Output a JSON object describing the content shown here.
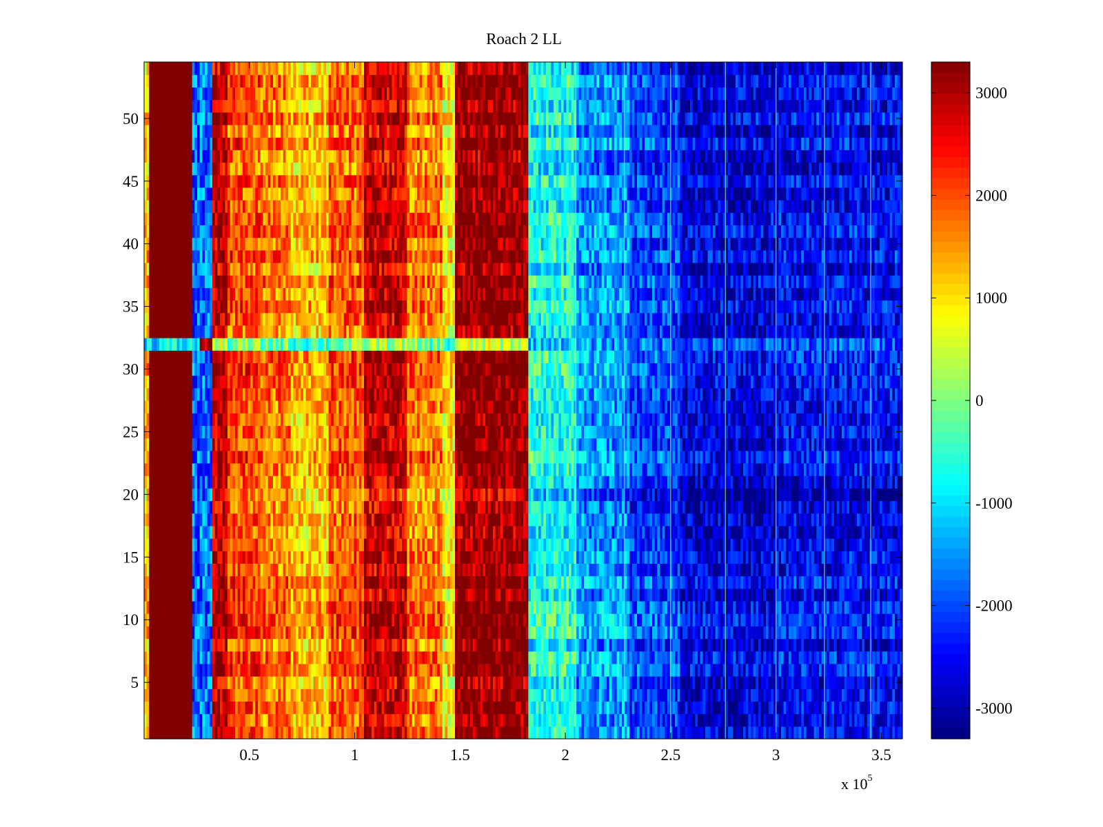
{
  "chart_data": {
    "type": "heatmap",
    "title": "Roach 2 LL",
    "xlabel": "",
    "ylabel": "",
    "x_multiplier_label": "x 10",
    "x_multiplier_exponent": "5",
    "xlim": [
      0,
      3.6
    ],
    "ylim": [
      0.5,
      54.5
    ],
    "rows": 54,
    "xticks": [
      {
        "value": 0.5,
        "label": "0.5"
      },
      {
        "value": 1,
        "label": "1"
      },
      {
        "value": 1.5,
        "label": "1.5"
      },
      {
        "value": 2,
        "label": "2"
      },
      {
        "value": 2.5,
        "label": "2.5"
      },
      {
        "value": 3,
        "label": "3"
      },
      {
        "value": 3.5,
        "label": "3.5"
      }
    ],
    "yticks": [
      {
        "value": 5,
        "label": "5"
      },
      {
        "value": 10,
        "label": "10"
      },
      {
        "value": 15,
        "label": "15"
      },
      {
        "value": 20,
        "label": "20"
      },
      {
        "value": 25,
        "label": "25"
      },
      {
        "value": 30,
        "label": "30"
      },
      {
        "value": 35,
        "label": "35"
      },
      {
        "value": 40,
        "label": "40"
      },
      {
        "value": 45,
        "label": "45"
      },
      {
        "value": 50,
        "label": "50"
      }
    ],
    "colorbar": {
      "colormap": "jet",
      "clim": [
        -3300,
        3300
      ],
      "ticks": [
        {
          "value": 3000,
          "label": "3000"
        },
        {
          "value": 2000,
          "label": "2000"
        },
        {
          "value": 1000,
          "label": "1000"
        },
        {
          "value": 0,
          "label": "0"
        },
        {
          "value": -1000,
          "label": "-1000"
        },
        {
          "value": -2000,
          "label": "-2000"
        },
        {
          "value": -3000,
          "label": "-3000"
        }
      ]
    },
    "column_profile": [
      {
        "x_start": 0.0,
        "x_end": 0.02,
        "value": 1200
      },
      {
        "x_start": 0.02,
        "x_end": 0.23,
        "value": 3300
      },
      {
        "x_start": 0.23,
        "x_end": 0.33,
        "value": -1800
      },
      {
        "x_start": 0.33,
        "x_end": 0.4,
        "value": 2900
      },
      {
        "x_start": 0.4,
        "x_end": 0.55,
        "value": 2000
      },
      {
        "x_start": 0.55,
        "x_end": 0.7,
        "value": 1700
      },
      {
        "x_start": 0.7,
        "x_end": 0.88,
        "value": 1200
      },
      {
        "x_start": 0.88,
        "x_end": 1.05,
        "value": 1900
      },
      {
        "x_start": 1.05,
        "x_end": 1.25,
        "value": 2800
      },
      {
        "x_start": 1.25,
        "x_end": 1.42,
        "value": 1700
      },
      {
        "x_start": 1.42,
        "x_end": 1.48,
        "value": 900
      },
      {
        "x_start": 1.48,
        "x_end": 1.83,
        "value": 3200
      },
      {
        "x_start": 1.83,
        "x_end": 2.05,
        "value": -700
      },
      {
        "x_start": 2.05,
        "x_end": 2.3,
        "value": -1500
      },
      {
        "x_start": 2.3,
        "x_end": 2.55,
        "value": -2100
      },
      {
        "x_start": 2.55,
        "x_end": 3.0,
        "value": -2700
      },
      {
        "x_start": 3.0,
        "x_end": 3.6,
        "value": -2500
      }
    ],
    "special_rows": [
      {
        "row": 32,
        "value_left": -800,
        "value_right": -1200
      },
      {
        "row": 12,
        "value_right_shift": -400
      },
      {
        "row": 20,
        "value_right_shift": -300
      }
    ],
    "bright_vertical_lines_x": [
      2.05,
      2.28,
      2.5,
      2.76,
      3.0,
      3.23,
      3.45
    ]
  }
}
